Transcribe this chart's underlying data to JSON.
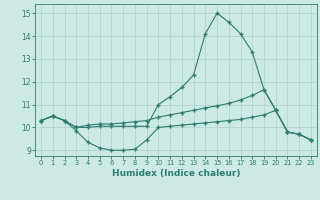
{
  "line1_x": [
    0,
    1,
    2,
    3,
    4,
    5,
    6,
    7,
    8,
    9,
    10,
    11,
    12,
    13,
    14,
    15,
    16,
    17,
    18,
    19,
    20,
    21,
    22,
    23
  ],
  "line1_y": [
    10.3,
    10.5,
    10.3,
    10.0,
    10.0,
    10.05,
    10.05,
    10.05,
    10.05,
    10.05,
    11.0,
    11.35,
    11.75,
    12.3,
    14.1,
    15.0,
    14.6,
    14.1,
    13.3,
    11.65,
    10.75,
    9.8,
    9.7,
    9.45
  ],
  "line2_x": [
    0,
    1,
    2,
    3,
    4,
    5,
    6,
    7,
    8,
    9,
    10,
    11,
    12,
    13,
    14,
    15,
    16,
    17,
    18,
    19,
    20,
    21,
    22,
    23
  ],
  "line2_y": [
    10.3,
    10.5,
    10.3,
    10.0,
    10.1,
    10.15,
    10.15,
    10.2,
    10.25,
    10.3,
    10.45,
    10.55,
    10.65,
    10.75,
    10.85,
    10.95,
    11.05,
    11.2,
    11.4,
    11.65,
    10.75,
    9.8,
    9.7,
    9.45
  ],
  "line3_x": [
    0,
    1,
    2,
    3,
    4,
    5,
    6,
    7,
    8,
    9,
    10,
    11,
    12,
    13,
    14,
    15,
    16,
    17,
    18,
    19,
    20,
    21,
    22,
    23
  ],
  "line3_y": [
    10.3,
    10.5,
    10.3,
    9.85,
    9.35,
    9.1,
    9.0,
    9.0,
    9.05,
    9.45,
    10.0,
    10.05,
    10.1,
    10.15,
    10.2,
    10.25,
    10.3,
    10.35,
    10.45,
    10.55,
    10.75,
    9.8,
    9.7,
    9.45
  ],
  "color": "#2e7d6e",
  "bg_color": "#cce9e4",
  "grid_color": "#aed0cb",
  "xlabel": "Humidex (Indice chaleur)",
  "xlim": [
    -0.5,
    23.5
  ],
  "ylim": [
    8.75,
    15.4
  ],
  "yticks": [
    9,
    10,
    11,
    12,
    13,
    14,
    15
  ],
  "xticks": [
    0,
    1,
    2,
    3,
    4,
    5,
    6,
    7,
    8,
    9,
    10,
    11,
    12,
    13,
    14,
    15,
    16,
    17,
    18,
    19,
    20,
    21,
    22,
    23
  ]
}
